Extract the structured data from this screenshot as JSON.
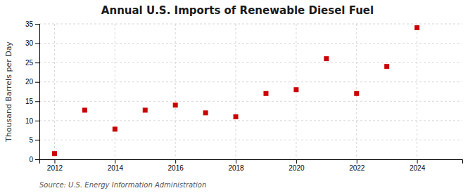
{
  "chart_data": {
    "type": "scatter",
    "title": "Annual U.S. Imports of Renewable Diesel Fuel",
    "y_label": "Thousand Barrels per Day",
    "annotations": [
      "Source: U.S. Energy Information Administration"
    ],
    "x": [
      2012,
      2013,
      2014,
      2015,
      2016,
      2017,
      2018,
      2019,
      2020,
      2021,
      2022,
      2023,
      2024
    ],
    "values": [
      1.5,
      12.7,
      7.8,
      12.7,
      14.0,
      12.0,
      11.0,
      17.0,
      18.0,
      26.0,
      17.0,
      24.0,
      34.0
    ],
    "color": "#cc0000",
    "marker": "square",
    "xlim": [
      2011.5,
      2025.5
    ],
    "xticks": [
      2012,
      2014,
      2016,
      2018,
      2020,
      2022,
      2024
    ],
    "ylim": [
      0,
      35
    ],
    "yticks": [
      0,
      5,
      10,
      15,
      20,
      25,
      30,
      35
    ],
    "grid": true
  }
}
